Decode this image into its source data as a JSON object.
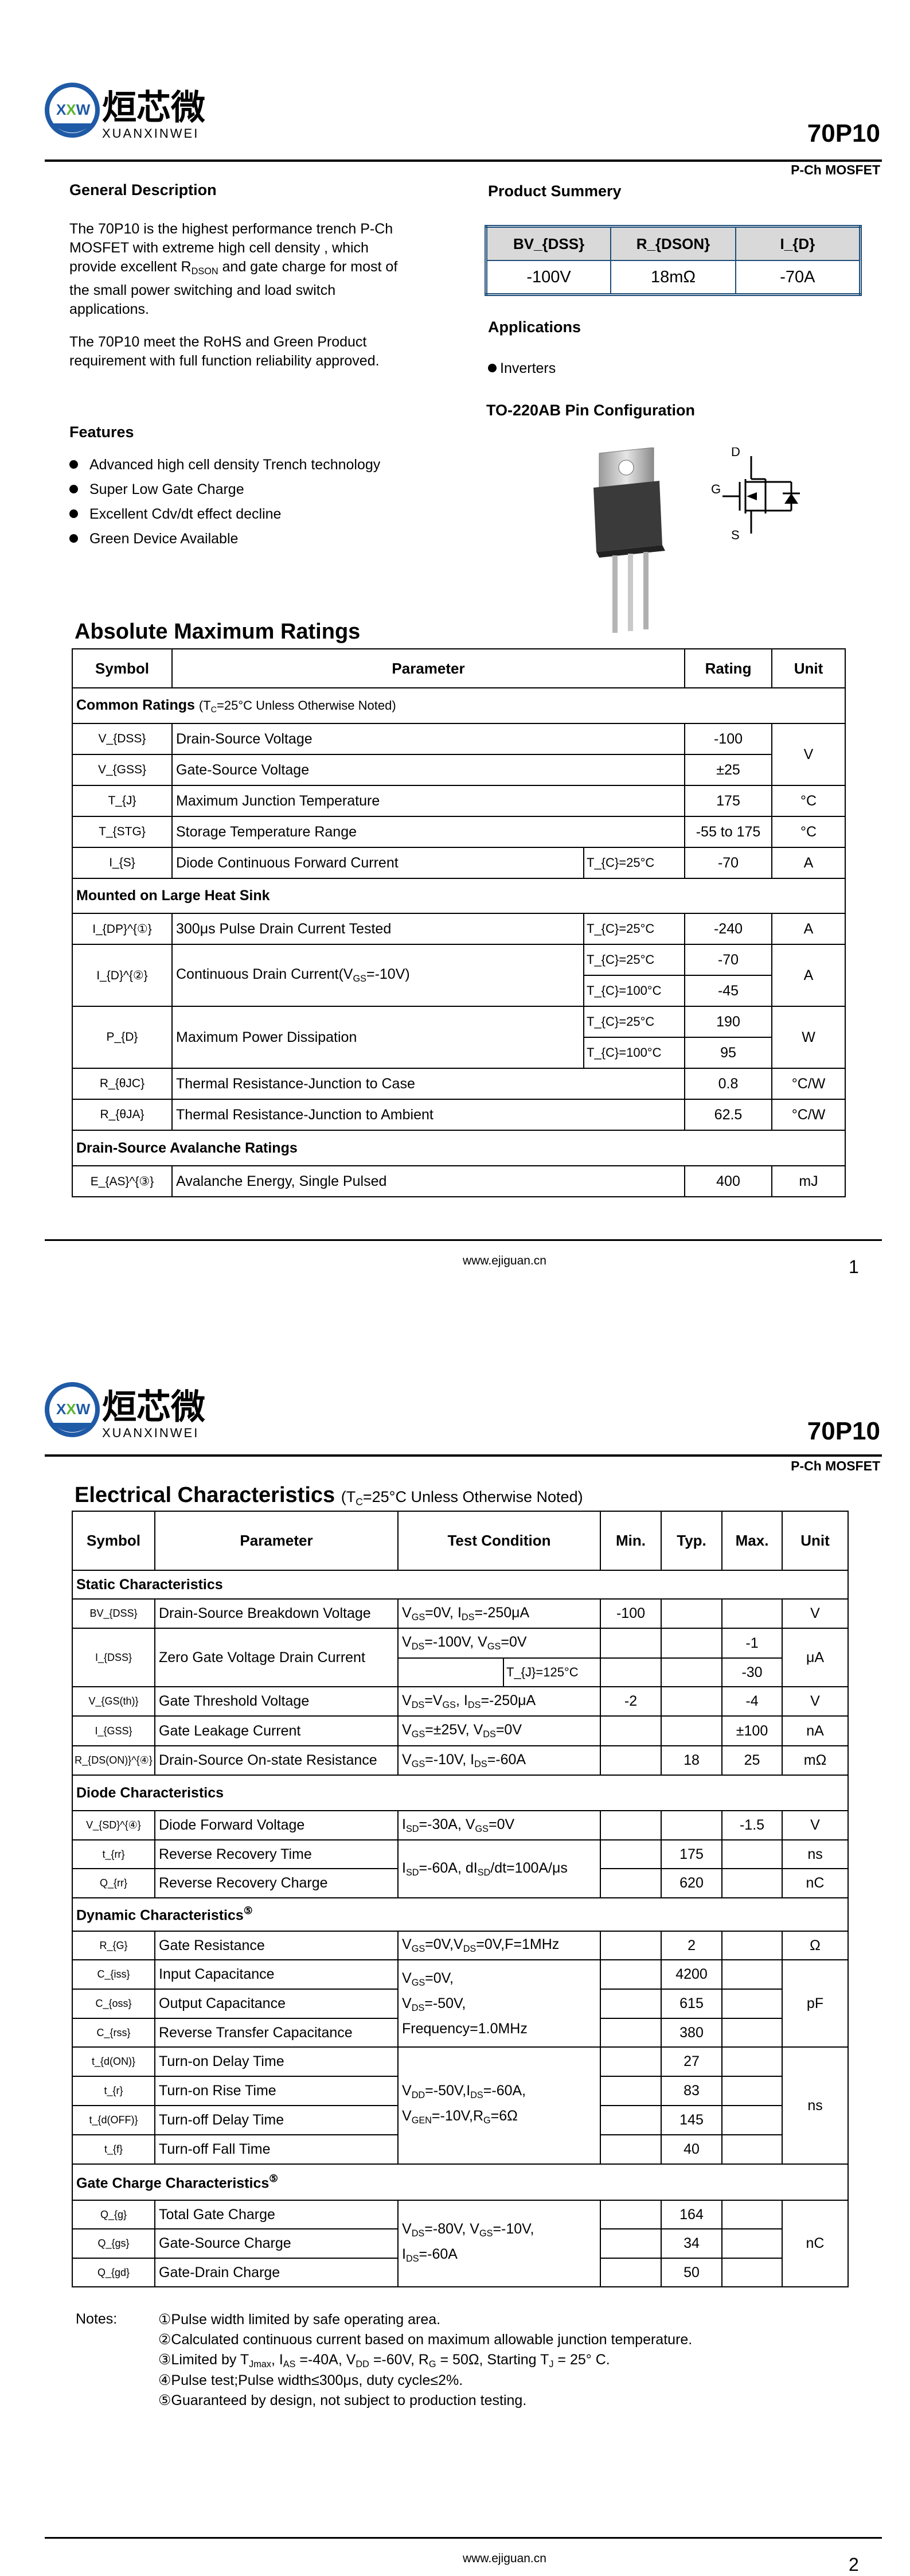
{
  "header": {
    "logo_text": "XXW",
    "logo_cn": "烜芯微",
    "logo_en": "XUANXINWEI",
    "part_number": "70P10",
    "device_type": "P-Ch MOSFET"
  },
  "colors": {
    "summary_border": "#1f4e79",
    "summary_header_bg": "#d9d9d9",
    "logo_blue": "#1f5aa6",
    "logo_green": "#5cb531"
  },
  "page1": {
    "general_description": {
      "heading": "General Description",
      "para1": "The     70P10    is the highest performance trench P-Ch MOSFET with extreme high cell density ,  which provide excellent R_{DSON} and gate charge  for most of the small power switching and load  switch applications.",
      "para2": "The     70P10     meet the RoHS and Green Product  requirement with full function reliability approved."
    },
    "product_summary": {
      "heading": "Product Summery",
      "headers": [
        "BV_{DSS}",
        "R_{DSON}",
        "I_{D}"
      ],
      "values": [
        "-100V",
        "18mΩ",
        "-70A"
      ]
    },
    "applications": {
      "heading": "Applications",
      "items": [
        "Inverters"
      ]
    },
    "pin_config": {
      "heading": "TO-220AB  Pin Configuration",
      "labels": {
        "drain": "D",
        "gate": "G",
        "source": "S"
      }
    },
    "features": {
      "heading": "Features",
      "items": [
        "Advanced high cell density Trench technology",
        "Super Low Gate Charge",
        "Excellent Cdv/dt effect decline",
        "Green Device Available"
      ]
    },
    "amr": {
      "title": "Absolute Maximum Ratings",
      "headers": {
        "symbol": "Symbol",
        "parameter": "Parameter",
        "rating": "Rating",
        "unit": "Unit"
      },
      "sections": {
        "common": "Common Ratings",
        "common_note": "(T_{C}=25°C Unless Otherwise Noted)",
        "heatsink": "Mounted on Large Heat Sink",
        "avalanche": "Drain-Source Avalanche Ratings"
      },
      "rows": [
        {
          "symbol": "V_{DSS}",
          "parameter": "Drain-Source Voltage",
          "condition": "",
          "rating": "-100",
          "unit": "V"
        },
        {
          "symbol": "V_{GSS}",
          "parameter": "Gate-Source Voltage",
          "condition": "",
          "rating": "±25",
          "unit": "V"
        },
        {
          "symbol": "T_{J}",
          "parameter": "Maximum Junction Temperature",
          "condition": "",
          "rating": "175",
          "unit": "°C"
        },
        {
          "symbol": "T_{STG}",
          "parameter": "Storage Temperature Range",
          "condition": "",
          "rating": "-55 to 175",
          "unit": "°C"
        },
        {
          "symbol": "I_{S}",
          "parameter": "Diode Continuous Forward Current",
          "condition": "T_{C}=25°C",
          "rating": "-70",
          "unit": "A"
        },
        {
          "symbol": "I_{DP}^{①}",
          "parameter": "300μs Pulse Drain Current Tested",
          "condition": "T_{C}=25°C",
          "rating": "-240",
          "unit": "A"
        },
        {
          "symbol": "I_{D}^{②}",
          "parameter": "Continuous Drain Current(V_{GS}=-10V)",
          "condition": "T_{C}=25°C",
          "rating": "-70",
          "unit": "A"
        },
        {
          "symbol": "",
          "parameter": "",
          "condition": "T_{C}=100°C",
          "rating": "-45",
          "unit": ""
        },
        {
          "symbol": "P_{D}",
          "parameter": "Maximum Power Dissipation",
          "condition": "T_{C}=25°C",
          "rating": "190",
          "unit": "W"
        },
        {
          "symbol": "",
          "parameter": "",
          "condition": "T_{C}=100°C",
          "rating": "95",
          "unit": ""
        },
        {
          "symbol": "R_{θJC}",
          "parameter": "Thermal Resistance-Junction to Case",
          "condition": "",
          "rating": "0.8",
          "unit": "°C/W"
        },
        {
          "symbol": "R_{θJA}",
          "parameter": "Thermal Resistance-Junction to Ambient",
          "condition": "",
          "rating": "62.5",
          "unit": "°C/W"
        },
        {
          "symbol": "E_{AS}^{③}",
          "parameter": "Avalanche Energy, Single Pulsed",
          "condition": "",
          "rating": "400",
          "unit": "mJ"
        }
      ]
    },
    "footer": {
      "url": "www.ejiguan.cn",
      "page": "1"
    }
  },
  "page2": {
    "ec": {
      "title": "Electrical Characteristics",
      "title_note": "(T_{C}=25°C Unless Otherwise Noted)",
      "headers": {
        "symbol": "Symbol",
        "parameter": "Parameter",
        "test": "Test Condition",
        "min": "Min.",
        "typ": "Typ.",
        "max": "Max.",
        "unit": "Unit"
      },
      "sections": {
        "static": "Static Characteristics",
        "diode": "Diode Characteristics",
        "dynamic": "Dynamic Characteristics^{⑤}",
        "gate": "Gate Charge Characteristics^{⑤}"
      },
      "rows": [
        {
          "symbol": "BV_{DSS}",
          "parameter": "Drain-Source Breakdown Voltage",
          "test": "V_{GS}=0V, I_{DS}=-250μA",
          "min": "-100",
          "typ": "",
          "max": "",
          "unit": "V"
        },
        {
          "symbol": "I_{DSS}",
          "parameter": "Zero Gate Voltage Drain Current",
          "test": "V_{DS}=-100V, V_{GS}=0V",
          "min": "",
          "typ": "",
          "max": "-1",
          "unit": "μA"
        },
        {
          "symbol": "",
          "parameter": "",
          "test": "T_{J}=125°C",
          "min": "",
          "typ": "",
          "max": "-30",
          "unit": ""
        },
        {
          "symbol": "V_{GS(th)}",
          "parameter": "Gate Threshold Voltage",
          "test": "V_{DS}=V_{GS}, I_{DS}=-250μA",
          "min": "-2",
          "typ": "",
          "max": "-4",
          "unit": "V"
        },
        {
          "symbol": "I_{GSS}",
          "parameter": "Gate Leakage Current",
          "test": "V_{GS}=±25V, V_{DS}=0V",
          "min": "",
          "typ": "",
          "max": "±100",
          "unit": "nA"
        },
        {
          "symbol": "R_{DS(ON)}^{④}",
          "parameter": "Drain-Source On-state Resistance",
          "test": "V_{GS}=-10V, I_{DS}=-60A",
          "min": "",
          "typ": "18",
          "max": "25",
          "unit": "mΩ"
        },
        {
          "symbol": "V_{SD}^{④}",
          "parameter": "Diode Forward Voltage",
          "test": "I_{SD}=-30A, V_{GS}=0V",
          "min": "",
          "typ": "",
          "max": "-1.5",
          "unit": "V"
        },
        {
          "symbol": "t_{rr}",
          "parameter": "Reverse Recovery Time",
          "test": "I_{SD}=-60A, dI_{SD}/dt=100A/μs",
          "min": "",
          "typ": "175",
          "max": "",
          "unit": "ns"
        },
        {
          "symbol": "Q_{rr}",
          "parameter": "Reverse Recovery Charge",
          "test": "",
          "min": "",
          "typ": "620",
          "max": "",
          "unit": "nC"
        },
        {
          "symbol": "R_{G}",
          "parameter": "Gate Resistance",
          "test": "V_{GS}=0V,V_{DS}=0V,F=1MHz",
          "min": "",
          "typ": "2",
          "max": "",
          "unit": "Ω"
        },
        {
          "symbol": "C_{iss}",
          "parameter": "Input Capacitance",
          "test": "V_{GS}=0V,\nV_{DS}=-50V,\nFrequency=1.0MHz",
          "min": "",
          "typ": "4200",
          "max": "",
          "unit": "pF"
        },
        {
          "symbol": "C_{oss}",
          "parameter": "Output Capacitance",
          "test": "",
          "min": "",
          "typ": "615",
          "max": "",
          "unit": ""
        },
        {
          "symbol": "C_{rss}",
          "parameter": "Reverse Transfer Capacitance",
          "test": "",
          "min": "",
          "typ": "380",
          "max": "",
          "unit": ""
        },
        {
          "symbol": "t_{d(ON)}",
          "parameter": "Turn-on Delay Time",
          "test": "V_{DD}=-50V,I_{DS}=-60A,\nV_{GEN}=-10V,R_{G}=6Ω",
          "min": "",
          "typ": "27",
          "max": "",
          "unit": "ns"
        },
        {
          "symbol": "t_{r}",
          "parameter": "Turn-on Rise Time",
          "test": "",
          "min": "",
          "typ": "83",
          "max": "",
          "unit": ""
        },
        {
          "symbol": "t_{d(OFF)}",
          "parameter": "Turn-off Delay Time",
          "test": "",
          "min": "",
          "typ": "145",
          "max": "",
          "unit": ""
        },
        {
          "symbol": "t_{f}",
          "parameter": "Turn-off Fall Time",
          "test": "",
          "min": "",
          "typ": "40",
          "max": "",
          "unit": ""
        },
        {
          "symbol": "Q_{g}",
          "parameter": "Total Gate Charge",
          "test": "V_{DS}=-80V, V_{GS}=-10V,\nI_{DS}=-60A",
          "min": "",
          "typ": "164",
          "max": "",
          "unit": "nC"
        },
        {
          "symbol": "Q_{gs}",
          "parameter": "Gate-Source Charge",
          "test": "",
          "min": "",
          "typ": "34",
          "max": "",
          "unit": ""
        },
        {
          "symbol": "Q_{gd}",
          "parameter": "Gate-Drain Charge",
          "test": "",
          "min": "",
          "typ": "50",
          "max": "",
          "unit": ""
        }
      ]
    },
    "notes": {
      "label": "Notes:",
      "items": [
        "①Pulse width limited by safe operating area.",
        "②Calculated continuous current based on maximum allowable  junction temperature.",
        "③Limited by T_{Jmax}, I_{AS} =-40A, V_{DD} =-60V, R_{G} = 50Ω, Starting T_{J} = 25°  C.",
        "④Pulse test;Pulse width≤300μs, duty cycle≤2%.",
        "⑤Guaranteed by design, not subject to production testing."
      ]
    },
    "footer": {
      "url": "www.ejiguan.cn",
      "page": "2"
    }
  }
}
